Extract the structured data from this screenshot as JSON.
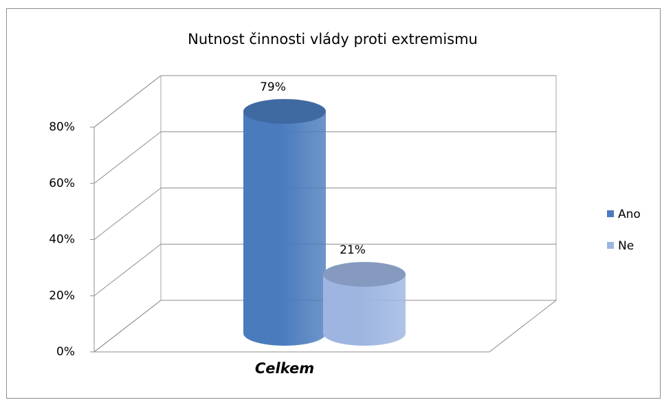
{
  "chart_data": {
    "type": "bar3d",
    "title": "Nutnost činnosti vlády proti extremismu",
    "categories": [
      "Celkem"
    ],
    "series": [
      {
        "name": "Ano",
        "color": "#4a7bbd",
        "values": [
          79
        ],
        "value_labels": [
          "79%"
        ]
      },
      {
        "name": "Ne",
        "color": "#9db5e0",
        "values": [
          21
        ],
        "value_labels": [
          "21%"
        ]
      }
    ],
    "ylim": [
      0,
      80
    ],
    "yticks": [
      {
        "value": 0,
        "label": "0%"
      },
      {
        "value": 20,
        "label": "20%"
      },
      {
        "value": 40,
        "label": "40%"
      },
      {
        "value": 60,
        "label": "60%"
      },
      {
        "value": 80,
        "label": "80%"
      }
    ],
    "grid": true,
    "legend": "right"
  }
}
